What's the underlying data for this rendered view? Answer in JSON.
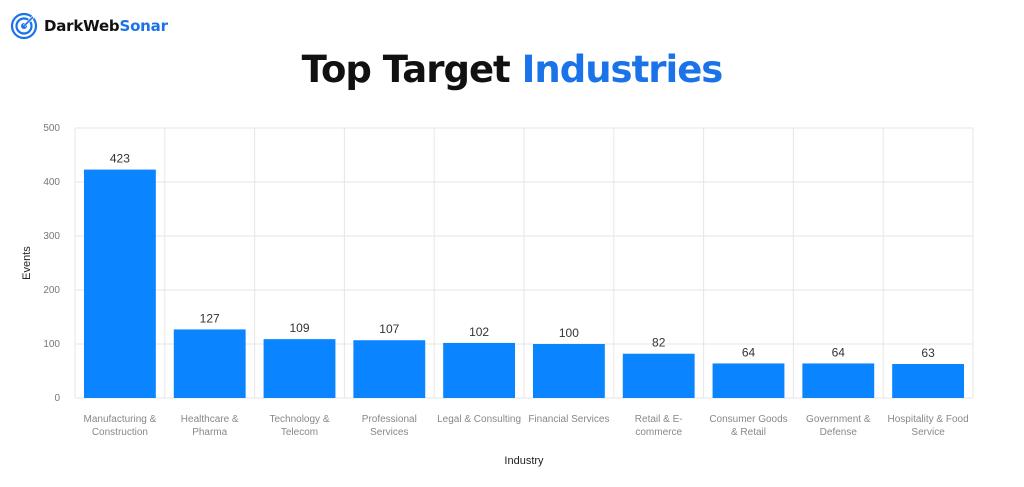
{
  "brand": {
    "name_main": "DarkWeb",
    "name_accent": "Sonar"
  },
  "title": {
    "main": "Top Target",
    "accent": "Industries"
  },
  "colors": {
    "bar": "#0a84ff",
    "accent": "#1a73e8",
    "grid": "#e6e6e6"
  },
  "chart_data": {
    "type": "bar",
    "xlabel": "Industry",
    "ylabel": "Events",
    "ylim": [
      0,
      500
    ],
    "yticks": [
      0,
      100,
      200,
      300,
      400,
      500
    ],
    "grid": true,
    "categories": [
      [
        "Manufacturing &",
        "Construction"
      ],
      [
        "Healthcare &",
        "Pharma"
      ],
      [
        "Technology &",
        "Telecom"
      ],
      [
        "Professional",
        "Services"
      ],
      [
        "Legal & Consulting"
      ],
      [
        "Financial Services"
      ],
      [
        "Retail & E-",
        "commerce"
      ],
      [
        "Consumer Goods",
        "& Retail"
      ],
      [
        "Government &",
        "Defense"
      ],
      [
        "Hospitality & Food",
        "Service"
      ]
    ],
    "values": [
      423,
      127,
      109,
      107,
      102,
      100,
      82,
      64,
      64,
      63
    ]
  }
}
